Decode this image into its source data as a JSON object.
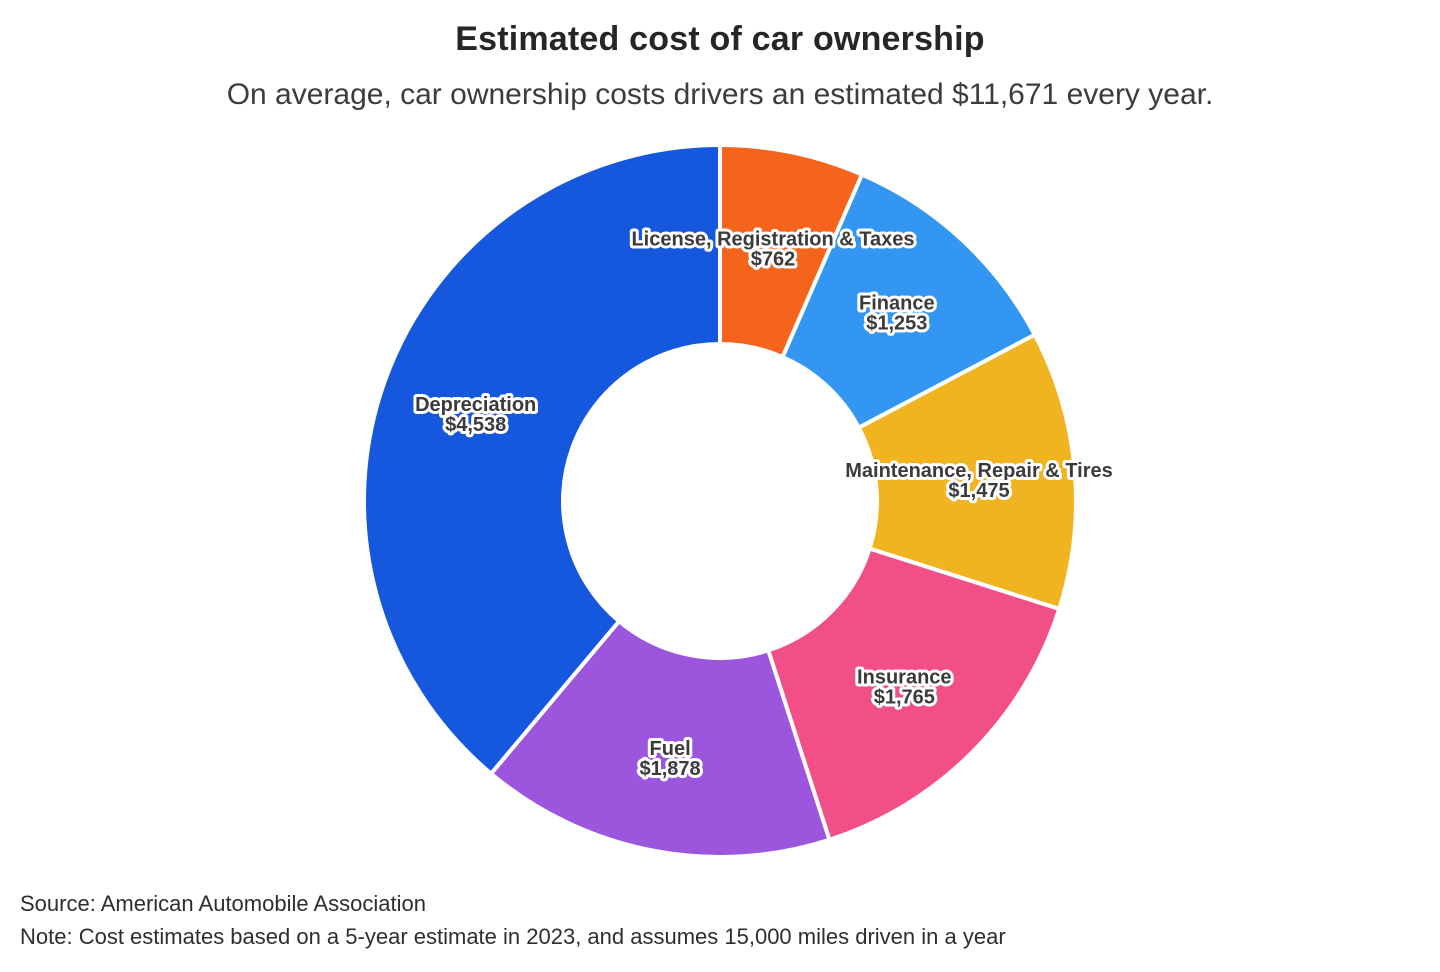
{
  "chart_data": {
    "type": "donut",
    "title": "Estimated cost of car ownership",
    "subtitle": "On average, car ownership costs drivers an estimated $11,671 every year.",
    "total_display": "$11,671",
    "order": "clockwise-from-12-oclock",
    "center": [
      720,
      501
    ],
    "outer_radius": 356,
    "inner_radius": 157,
    "label_radius": 260,
    "label_text_color": "#3b3b3b",
    "label_outline_color": "#ffffff",
    "segments": [
      {
        "label": "License, Registration & Taxes",
        "value": 762,
        "display_value": "$762",
        "color": "#F5641D"
      },
      {
        "label": "Finance",
        "value": 1253,
        "display_value": "$1,253",
        "color": "#3296F2"
      },
      {
        "label": "Maintenance, Repair & Tires",
        "value": 1475,
        "display_value": "$1,475",
        "color": "#EFB41F"
      },
      {
        "label": "Insurance",
        "value": 1765,
        "display_value": "$1,765",
        "color": "#F24E87"
      },
      {
        "label": "Fuel",
        "value": 1878,
        "display_value": "$1,878",
        "color": "#9C55DD"
      },
      {
        "label": "Depreciation",
        "value": 4538,
        "display_value": "$4,538",
        "color": "#1658DD"
      }
    ]
  },
  "footer": {
    "source": "Source: American Automobile Association",
    "note": "Note: Cost estimates based on a 5-year estimate in 2023, and assumes 15,000 miles driven in a year"
  }
}
